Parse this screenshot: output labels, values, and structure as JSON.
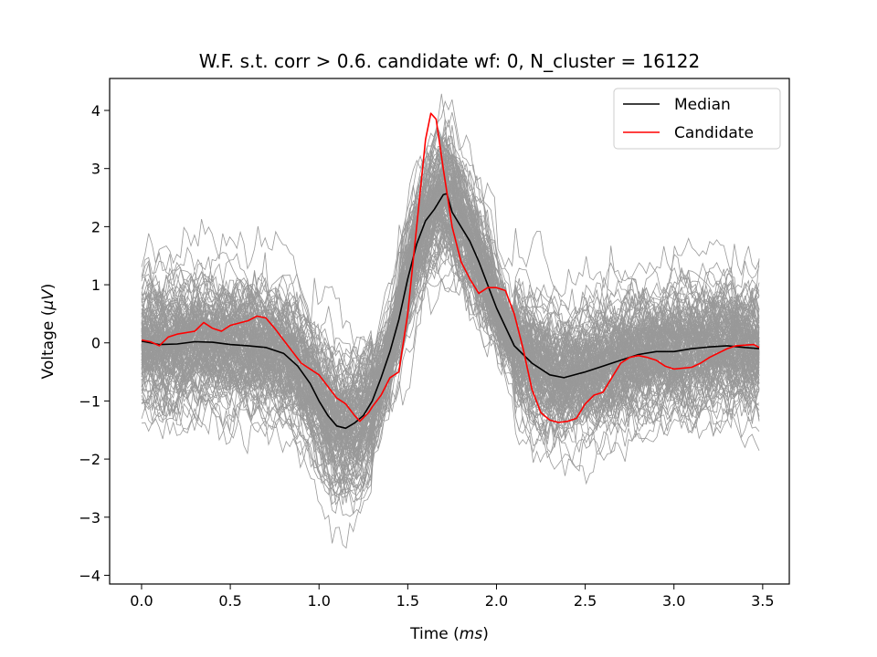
{
  "chart_data": {
    "type": "line",
    "title": "W.F. s.t. corr > 0.6. candidate wf: 0, N_cluster = 16122",
    "xlabel_prefix": "Time (",
    "xlabel_unit": "ms",
    "xlabel_suffix": ")",
    "ylabel_prefix": "Voltage (",
    "ylabel_unit": "μV",
    "ylabel_suffix": ")",
    "xlim": [
      -0.18,
      3.65
    ],
    "ylim": [
      -4.15,
      4.55
    ],
    "xticks": [
      0.0,
      0.5,
      1.0,
      1.5,
      2.0,
      2.5,
      3.0,
      3.5
    ],
    "xtick_labels": [
      "0.0",
      "0.5",
      "1.0",
      "1.5",
      "2.0",
      "2.5",
      "3.0",
      "3.5"
    ],
    "yticks": [
      -4,
      -3,
      -2,
      -1,
      0,
      1,
      2,
      3,
      4
    ],
    "ytick_labels": [
      "−4",
      "−3",
      "−2",
      "−1",
      "0",
      "1",
      "2",
      "3",
      "4"
    ],
    "grid": false,
    "legend_position": "upper-right",
    "legend": [
      {
        "label": "Median",
        "color": "#000000"
      },
      {
        "label": "Candidate",
        "color": "#ff0000"
      }
    ],
    "cluster_trace_color": "#999999",
    "series": [
      {
        "name": "Median",
        "color": "#000000",
        "points": [
          [
            0.0,
            0.03
          ],
          [
            0.1,
            -0.03
          ],
          [
            0.2,
            -0.02
          ],
          [
            0.3,
            0.02
          ],
          [
            0.4,
            0.01
          ],
          [
            0.5,
            -0.03
          ],
          [
            0.6,
            -0.05
          ],
          [
            0.7,
            -0.08
          ],
          [
            0.8,
            -0.18
          ],
          [
            0.88,
            -0.4
          ],
          [
            0.95,
            -0.7
          ],
          [
            1.0,
            -1.0
          ],
          [
            1.05,
            -1.25
          ],
          [
            1.1,
            -1.43
          ],
          [
            1.15,
            -1.47
          ],
          [
            1.2,
            -1.38
          ],
          [
            1.25,
            -1.25
          ],
          [
            1.3,
            -1.0
          ],
          [
            1.35,
            -0.6
          ],
          [
            1.4,
            -0.15
          ],
          [
            1.45,
            0.4
          ],
          [
            1.5,
            1.1
          ],
          [
            1.55,
            1.7
          ],
          [
            1.6,
            2.1
          ],
          [
            1.65,
            2.3
          ],
          [
            1.7,
            2.55
          ],
          [
            1.72,
            2.57
          ],
          [
            1.75,
            2.25
          ],
          [
            1.8,
            2.0
          ],
          [
            1.85,
            1.75
          ],
          [
            1.9,
            1.4
          ],
          [
            2.0,
            0.6
          ],
          [
            2.1,
            -0.05
          ],
          [
            2.2,
            -0.35
          ],
          [
            2.3,
            -0.55
          ],
          [
            2.38,
            -0.6
          ],
          [
            2.5,
            -0.5
          ],
          [
            2.6,
            -0.4
          ],
          [
            2.7,
            -0.3
          ],
          [
            2.8,
            -0.2
          ],
          [
            2.9,
            -0.15
          ],
          [
            3.0,
            -0.15
          ],
          [
            3.1,
            -0.1
          ],
          [
            3.2,
            -0.07
          ],
          [
            3.3,
            -0.05
          ],
          [
            3.4,
            -0.08
          ],
          [
            3.48,
            -0.1
          ]
        ]
      },
      {
        "name": "Candidate",
        "color": "#ff0000",
        "points": [
          [
            0.0,
            0.05
          ],
          [
            0.05,
            0.02
          ],
          [
            0.1,
            -0.05
          ],
          [
            0.15,
            0.1
          ],
          [
            0.2,
            0.15
          ],
          [
            0.3,
            0.2
          ],
          [
            0.35,
            0.35
          ],
          [
            0.4,
            0.25
          ],
          [
            0.45,
            0.2
          ],
          [
            0.5,
            0.3
          ],
          [
            0.6,
            0.38
          ],
          [
            0.65,
            0.46
          ],
          [
            0.7,
            0.43
          ],
          [
            0.75,
            0.25
          ],
          [
            0.8,
            0.05
          ],
          [
            0.85,
            -0.15
          ],
          [
            0.9,
            -0.35
          ],
          [
            0.95,
            -0.45
          ],
          [
            1.0,
            -0.55
          ],
          [
            1.05,
            -0.75
          ],
          [
            1.1,
            -0.95
          ],
          [
            1.15,
            -1.05
          ],
          [
            1.2,
            -1.25
          ],
          [
            1.23,
            -1.35
          ],
          [
            1.28,
            -1.2
          ],
          [
            1.3,
            -1.1
          ],
          [
            1.35,
            -0.9
          ],
          [
            1.4,
            -0.6
          ],
          [
            1.45,
            -0.5
          ],
          [
            1.5,
            0.5
          ],
          [
            1.55,
            2.0
          ],
          [
            1.6,
            3.5
          ],
          [
            1.63,
            3.95
          ],
          [
            1.66,
            3.85
          ],
          [
            1.7,
            3.0
          ],
          [
            1.75,
            2.0
          ],
          [
            1.8,
            1.4
          ],
          [
            1.85,
            1.1
          ],
          [
            1.9,
            0.85
          ],
          [
            1.95,
            0.95
          ],
          [
            2.0,
            0.95
          ],
          [
            2.05,
            0.9
          ],
          [
            2.1,
            0.5
          ],
          [
            2.15,
            -0.1
          ],
          [
            2.2,
            -0.8
          ],
          [
            2.25,
            -1.2
          ],
          [
            2.3,
            -1.33
          ],
          [
            2.35,
            -1.37
          ],
          [
            2.4,
            -1.35
          ],
          [
            2.45,
            -1.3
          ],
          [
            2.5,
            -1.05
          ],
          [
            2.55,
            -0.9
          ],
          [
            2.6,
            -0.85
          ],
          [
            2.65,
            -0.6
          ],
          [
            2.7,
            -0.35
          ],
          [
            2.75,
            -0.25
          ],
          [
            2.8,
            -0.22
          ],
          [
            2.85,
            -0.25
          ],
          [
            2.9,
            -0.3
          ],
          [
            2.95,
            -0.4
          ],
          [
            3.0,
            -0.45
          ],
          [
            3.1,
            -0.42
          ],
          [
            3.15,
            -0.35
          ],
          [
            3.2,
            -0.25
          ],
          [
            3.3,
            -0.1
          ],
          [
            3.35,
            -0.05
          ],
          [
            3.45,
            -0.03
          ],
          [
            3.48,
            -0.08
          ]
        ]
      }
    ]
  }
}
